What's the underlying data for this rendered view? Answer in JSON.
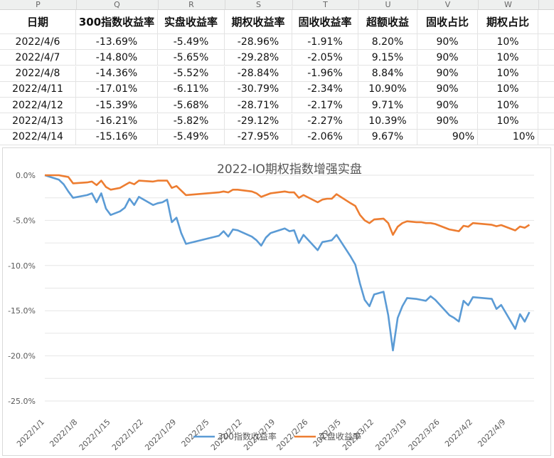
{
  "spreadsheet": {
    "column_letters": [
      "P",
      "Q",
      "R",
      "S",
      "T",
      "U",
      "V",
      "W"
    ],
    "headers": [
      "日期",
      "300指数收益率",
      "实盘收益率",
      "期权收益率",
      "固收收益率",
      "超额收益",
      "固收占比",
      "期权占比"
    ],
    "rows": [
      [
        "2022/4/6",
        "-13.69%",
        "-5.49%",
        "-28.96%",
        "-1.91%",
        "8.20%",
        "90%",
        "10%"
      ],
      [
        "2022/4/7",
        "-14.80%",
        "-5.65%",
        "-29.28%",
        "-2.05%",
        "9.15%",
        "90%",
        "10%"
      ],
      [
        "2022/4/8",
        "-14.36%",
        "-5.52%",
        "-28.84%",
        "-1.96%",
        "8.84%",
        "90%",
        "10%"
      ],
      [
        "2022/4/11",
        "-17.01%",
        "-6.11%",
        "-30.79%",
        "-2.34%",
        "10.90%",
        "90%",
        "10%"
      ],
      [
        "2022/4/12",
        "-15.39%",
        "-5.68%",
        "-28.71%",
        "-2.17%",
        "9.71%",
        "90%",
        "10%"
      ],
      [
        "2022/4/13",
        "-16.21%",
        "-5.82%",
        "-29.12%",
        "-2.27%",
        "10.39%",
        "90%",
        "10%"
      ],
      [
        "2022/4/14",
        "-15.16%",
        "-5.49%",
        "-27.95%",
        "-2.06%",
        "9.67%",
        "90%",
        "10%"
      ]
    ]
  },
  "chart_data": {
    "type": "line",
    "title": "2022-IO期权指数增强实盘",
    "ylim": [
      -0.25,
      0.0
    ],
    "y_ticks": [
      "0.0%",
      "-5.0%",
      "-10.0%",
      "-15.0%",
      "-20.0%",
      "-25.0%"
    ],
    "x_ticks": [
      "2022/1/1",
      "2022/1/8",
      "2022/1/15",
      "2022/1/22",
      "2022/1/29",
      "2022/2/5",
      "2022/2/12",
      "2022/2/19",
      "2022/2/26",
      "2022/3/5",
      "2022/3/12",
      "2022/3/19",
      "2022/3/26",
      "2022/4/2",
      "2022/4/9"
    ],
    "x_start": "2022/1/1",
    "x_end": "2022/4/15",
    "grid": true,
    "legend": "bottom",
    "series": [
      {
        "name": "300指数收益率",
        "color": "#5b9bd5",
        "points": [
          [
            "2022/1/1",
            0.0
          ],
          [
            "2022/1/4",
            -0.005
          ],
          [
            "2022/1/5",
            -0.01
          ],
          [
            "2022/1/6",
            -0.018
          ],
          [
            "2022/1/7",
            -0.025
          ],
          [
            "2022/1/10",
            -0.022
          ],
          [
            "2022/1/11",
            -0.02
          ],
          [
            "2022/1/12",
            -0.03
          ],
          [
            "2022/1/13",
            -0.02
          ],
          [
            "2022/1/14",
            -0.037
          ],
          [
            "2022/1/15",
            -0.044
          ],
          [
            "2022/1/17",
            -0.04
          ],
          [
            "2022/1/18",
            -0.036
          ],
          [
            "2022/1/19",
            -0.026
          ],
          [
            "2022/1/20",
            -0.033
          ],
          [
            "2022/1/21",
            -0.024
          ],
          [
            "2022/1/24",
            -0.033
          ],
          [
            "2022/1/25",
            -0.031
          ],
          [
            "2022/1/26",
            -0.03
          ],
          [
            "2022/1/27",
            -0.027
          ],
          [
            "2022/1/28",
            -0.052
          ],
          [
            "2022/1/29",
            -0.047
          ],
          [
            "2022/1/30",
            -0.064
          ],
          [
            "2022/1/31",
            -0.076
          ],
          [
            "2022/2/7",
            -0.067
          ],
          [
            "2022/2/8",
            -0.062
          ],
          [
            "2022/2/9",
            -0.068
          ],
          [
            "2022/2/10",
            -0.06
          ],
          [
            "2022/2/11",
            -0.061
          ],
          [
            "2022/2/14",
            -0.068
          ],
          [
            "2022/2/15",
            -0.072
          ],
          [
            "2022/2/16",
            -0.078
          ],
          [
            "2022/2/17",
            -0.069
          ],
          [
            "2022/2/18",
            -0.064
          ],
          [
            "2022/2/21",
            -0.059
          ],
          [
            "2022/2/22",
            -0.062
          ],
          [
            "2022/2/23",
            -0.061
          ],
          [
            "2022/2/24",
            -0.075
          ],
          [
            "2022/2/25",
            -0.066
          ],
          [
            "2022/2/28",
            -0.083
          ],
          [
            "2022/3/1",
            -0.074
          ],
          [
            "2022/3/2",
            -0.073
          ],
          [
            "2022/3/3",
            -0.072
          ],
          [
            "2022/3/4",
            -0.066
          ],
          [
            "2022/3/7",
            -0.09
          ],
          [
            "2022/3/8",
            -0.099
          ],
          [
            "2022/3/9",
            -0.12
          ],
          [
            "2022/3/10",
            -0.138
          ],
          [
            "2022/3/11",
            -0.145
          ],
          [
            "2022/3/12",
            -0.132
          ],
          [
            "2022/3/14",
            -0.129
          ],
          [
            "2022/3/15",
            -0.155
          ],
          [
            "2022/3/16",
            -0.194
          ],
          [
            "2022/3/17",
            -0.158
          ],
          [
            "2022/3/18",
            -0.145
          ],
          [
            "2022/3/19",
            -0.136
          ],
          [
            "2022/3/21",
            -0.137
          ],
          [
            "2022/3/22",
            -0.138
          ],
          [
            "2022/3/23",
            -0.139
          ],
          [
            "2022/3/24",
            -0.134
          ],
          [
            "2022/3/25",
            -0.138
          ],
          [
            "2022/3/28",
            -0.155
          ],
          [
            "2022/3/29",
            -0.158
          ],
          [
            "2022/3/30",
            -0.162
          ],
          [
            "2022/3/31",
            -0.139
          ],
          [
            "2022/4/1",
            -0.144
          ],
          [
            "2022/4/2",
            -0.135
          ],
          [
            "2022/4/6",
            -0.1369
          ],
          [
            "2022/4/7",
            -0.148
          ],
          [
            "2022/4/8",
            -0.1436
          ],
          [
            "2022/4/11",
            -0.1701
          ],
          [
            "2022/4/12",
            -0.1539
          ],
          [
            "2022/4/13",
            -0.1621
          ],
          [
            "2022/4/14",
            -0.1516
          ]
        ]
      },
      {
        "name": "实盘收益率",
        "color": "#ed7d31",
        "points": [
          [
            "2022/1/1",
            0.0
          ],
          [
            "2022/1/4",
            0.0
          ],
          [
            "2022/1/5",
            -0.001
          ],
          [
            "2022/1/6",
            -0.002
          ],
          [
            "2022/1/7",
            -0.009
          ],
          [
            "2022/1/10",
            -0.008
          ],
          [
            "2022/1/11",
            -0.007
          ],
          [
            "2022/1/12",
            -0.011
          ],
          [
            "2022/1/13",
            -0.006
          ],
          [
            "2022/1/14",
            -0.013
          ],
          [
            "2022/1/15",
            -0.016
          ],
          [
            "2022/1/17",
            -0.014
          ],
          [
            "2022/1/18",
            -0.011
          ],
          [
            "2022/1/19",
            -0.008
          ],
          [
            "2022/1/20",
            -0.01
          ],
          [
            "2022/1/21",
            -0.006
          ],
          [
            "2022/1/24",
            -0.007
          ],
          [
            "2022/1/25",
            -0.006
          ],
          [
            "2022/1/26",
            -0.006
          ],
          [
            "2022/1/27",
            -0.006
          ],
          [
            "2022/1/28",
            -0.014
          ],
          [
            "2022/1/29",
            -0.012
          ],
          [
            "2022/1/30",
            -0.017
          ],
          [
            "2022/1/31",
            -0.022
          ],
          [
            "2022/2/7",
            -0.019
          ],
          [
            "2022/2/8",
            -0.018
          ],
          [
            "2022/2/9",
            -0.019
          ],
          [
            "2022/2/10",
            -0.016
          ],
          [
            "2022/2/11",
            -0.016
          ],
          [
            "2022/2/14",
            -0.018
          ],
          [
            "2022/2/15",
            -0.02
          ],
          [
            "2022/2/16",
            -0.024
          ],
          [
            "2022/2/17",
            -0.022
          ],
          [
            "2022/2/18",
            -0.02
          ],
          [
            "2022/2/21",
            -0.018
          ],
          [
            "2022/2/22",
            -0.019
          ],
          [
            "2022/2/23",
            -0.019
          ],
          [
            "2022/2/24",
            -0.025
          ],
          [
            "2022/2/25",
            -0.022
          ],
          [
            "2022/2/28",
            -0.03
          ],
          [
            "2022/3/1",
            -0.027
          ],
          [
            "2022/3/2",
            -0.026
          ],
          [
            "2022/3/3",
            -0.026
          ],
          [
            "2022/3/4",
            -0.021
          ],
          [
            "2022/3/7",
            -0.031
          ],
          [
            "2022/3/8",
            -0.034
          ],
          [
            "2022/3/9",
            -0.044
          ],
          [
            "2022/3/10",
            -0.05
          ],
          [
            "2022/3/11",
            -0.053
          ],
          [
            "2022/3/12",
            -0.049
          ],
          [
            "2022/3/14",
            -0.048
          ],
          [
            "2022/3/15",
            -0.053
          ],
          [
            "2022/3/16",
            -0.066
          ],
          [
            "2022/3/17",
            -0.057
          ],
          [
            "2022/3/18",
            -0.053
          ],
          [
            "2022/3/19",
            -0.051
          ],
          [
            "2022/3/21",
            -0.052
          ],
          [
            "2022/3/22",
            -0.052
          ],
          [
            "2022/3/23",
            -0.053
          ],
          [
            "2022/3/24",
            -0.053
          ],
          [
            "2022/3/25",
            -0.054
          ],
          [
            "2022/3/28",
            -0.06
          ],
          [
            "2022/3/29",
            -0.061
          ],
          [
            "2022/3/30",
            -0.062
          ],
          [
            "2022/3/31",
            -0.056
          ],
          [
            "2022/4/1",
            -0.057
          ],
          [
            "2022/4/2",
            -0.053
          ],
          [
            "2022/4/6",
            -0.0549
          ],
          [
            "2022/4/7",
            -0.0565
          ],
          [
            "2022/4/8",
            -0.0552
          ],
          [
            "2022/4/11",
            -0.0611
          ],
          [
            "2022/4/12",
            -0.0568
          ],
          [
            "2022/4/13",
            -0.0582
          ],
          [
            "2022/4/14",
            -0.0549
          ]
        ]
      }
    ]
  }
}
